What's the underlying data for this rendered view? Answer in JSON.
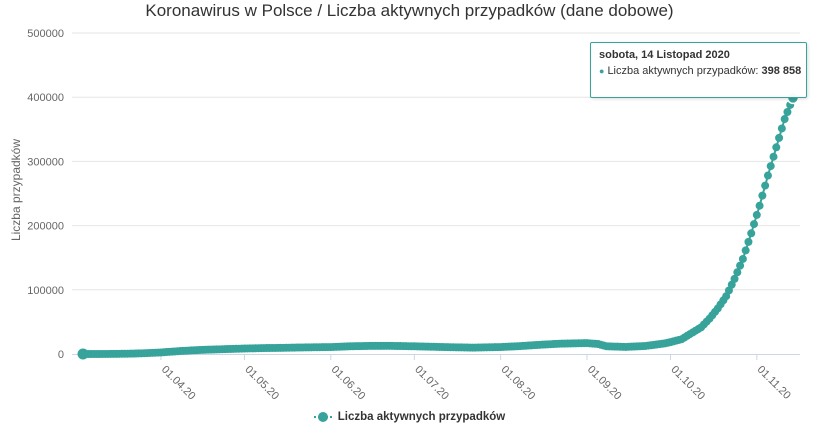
{
  "title": "Koronawirus w Polsce / Liczba aktywnych przypadków (dane dobowe)",
  "colors": {
    "series": "#37a39b",
    "grid": "#e6e6e6",
    "text": "#666666"
  },
  "tooltip": {
    "date": "sobota, 14 Listopad 2020",
    "series_label": "Liczba aktywnych przypadków: ",
    "value": "398 858"
  },
  "legend": {
    "label": "Liczba aktywnych przypadków"
  },
  "chart_data": {
    "type": "line",
    "ylabel": "Liczba przypadków",
    "ylim": [
      0,
      500000
    ],
    "yticks": [
      0,
      100000,
      200000,
      300000,
      400000,
      500000
    ],
    "ytick_labels": [
      "0",
      "100000",
      "200000",
      "300000",
      "400000",
      "500000"
    ],
    "xlim": [
      "2020-03-04",
      "2020-11-14"
    ],
    "xticks": [
      "2020-04-01",
      "2020-05-01",
      "2020-06-01",
      "2020-07-01",
      "2020-08-01",
      "2020-09-01",
      "2020-10-01",
      "2020-11-01"
    ],
    "xtick_labels": [
      "01.04.20",
      "01.05.20",
      "01.06.20",
      "01.07.20",
      "01.08.20",
      "01.09.20",
      "01.10.20",
      "01.11.20"
    ],
    "grid": true,
    "legend_position": "bottom-center",
    "series": [
      {
        "name": "Liczba aktywnych przypadków",
        "points": [
          [
            "2020-03-04",
            1
          ],
          [
            "2020-03-10",
            20
          ],
          [
            "2020-03-15",
            120
          ],
          [
            "2020-03-20",
            420
          ],
          [
            "2020-03-25",
            1000
          ],
          [
            "2020-04-01",
            2400
          ],
          [
            "2020-04-08",
            4600
          ],
          [
            "2020-04-15",
            6300
          ],
          [
            "2020-04-22",
            7300
          ],
          [
            "2020-05-01",
            8500
          ],
          [
            "2020-05-08",
            9200
          ],
          [
            "2020-05-15",
            9600
          ],
          [
            "2020-05-22",
            10200
          ],
          [
            "2020-06-01",
            10800
          ],
          [
            "2020-06-08",
            12000
          ],
          [
            "2020-06-15",
            12600
          ],
          [
            "2020-06-22",
            12700
          ],
          [
            "2020-07-01",
            12000
          ],
          [
            "2020-07-08",
            11200
          ],
          [
            "2020-07-15",
            10500
          ],
          [
            "2020-07-22",
            9900
          ],
          [
            "2020-08-01",
            10800
          ],
          [
            "2020-08-08",
            12300
          ],
          [
            "2020-08-15",
            14300
          ],
          [
            "2020-08-22",
            16000
          ],
          [
            "2020-09-01",
            17000
          ],
          [
            "2020-09-05",
            15500
          ],
          [
            "2020-09-08",
            12000
          ],
          [
            "2020-09-15",
            11000
          ],
          [
            "2020-09-22",
            12500
          ],
          [
            "2020-09-29",
            16500
          ],
          [
            "2020-10-01",
            18500
          ],
          [
            "2020-10-05",
            23000
          ],
          [
            "2020-10-08",
            31000
          ],
          [
            "2020-10-12",
            41500
          ],
          [
            "2020-10-15",
            55000
          ],
          [
            "2020-10-18",
            71000
          ],
          [
            "2020-10-21",
            90000
          ],
          [
            "2020-10-24",
            117000
          ],
          [
            "2020-10-27",
            148000
          ],
          [
            "2020-10-30",
            188000
          ],
          [
            "2020-11-02",
            231000
          ],
          [
            "2020-11-05",
            278000
          ],
          [
            "2020-11-08",
            322000
          ],
          [
            "2020-11-11",
            366000
          ],
          [
            "2020-11-14",
            398858
          ]
        ]
      }
    ]
  }
}
